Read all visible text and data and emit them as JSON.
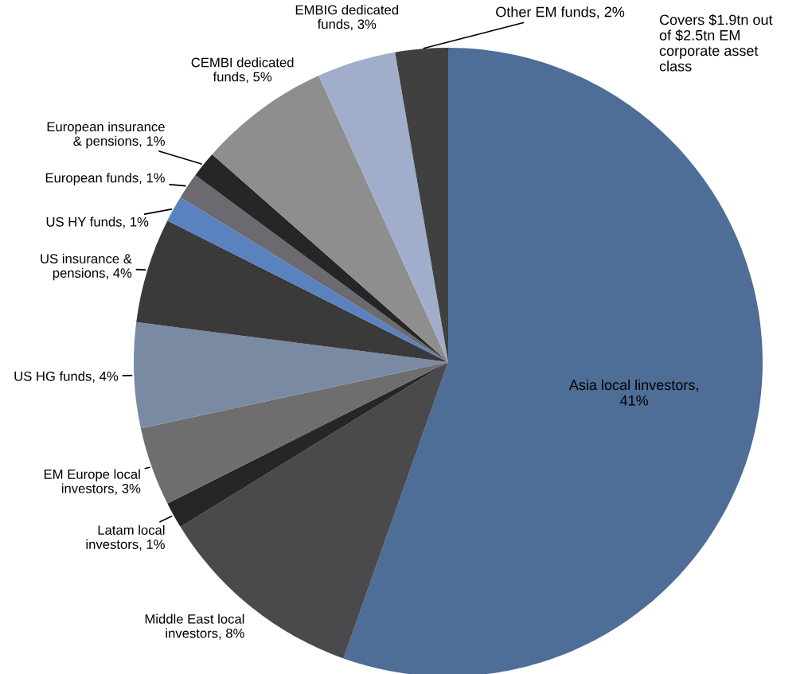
{
  "chart_data": {
    "type": "pie",
    "categories": [
      "Asia local linvestors,\n41%",
      "Middle East local\ninvestors, 8%",
      "Latam local\ninvestors, 1%",
      "EM Europe local\ninvestors, 3%",
      "US HG funds, 4%",
      "US insurance &\npensions, 4%",
      "US HY funds, 1%",
      "European funds, 1%",
      "European insurance\n& pensions, 1%",
      "CEMBI dedicated\nfunds, 5%",
      "EMBIG dedicated\nfunds, 3%",
      "Other EM funds, 2%"
    ],
    "values": [
      41,
      8,
      1,
      3,
      4,
      4,
      1,
      1,
      1,
      5,
      3,
      2
    ],
    "colors": [
      "#4e6d97",
      "#4a4a4c",
      "#262626",
      "#6e6e6e",
      "#7b8aa3",
      "#3a3a3a",
      "#5b82c0",
      "#6a6a70",
      "#262626",
      "#8e8e8e",
      "#a1aecb",
      "#404040"
    ],
    "annotations": [
      "Covers $1.9tn out\nof $2.5tn EM\ncorporate asset\nclass"
    ]
  }
}
